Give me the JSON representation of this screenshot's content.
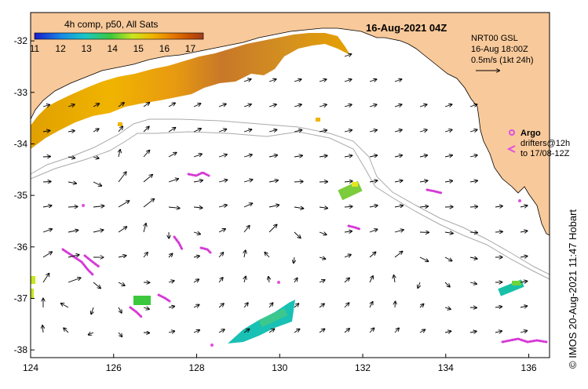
{
  "map": {
    "title": "16-Aug-2021 04Z",
    "credit": "IMOS 20-Aug-2021 11:47 Hobart",
    "credit_symbol": "©",
    "lon_range": [
      124,
      136.5
    ],
    "lat_range": [
      -38.15,
      -31.45
    ],
    "lon_ticks": [
      "124",
      "126",
      "128",
      "130",
      "132",
      "134",
      "136"
    ],
    "lat_ticks": [
      "-32",
      "-33",
      "-34",
      "-35",
      "-36",
      "-37",
      "-38"
    ],
    "colors": {
      "land": "#f8c99a",
      "ocean": "#ffffff",
      "argo": "#e04fe0",
      "drifter": "#d63ad6",
      "contour": "#aaaaaa",
      "arrow": "#000000"
    }
  },
  "colorbar": {
    "title": "4h comp, p50, All Sats",
    "labels": [
      "11",
      "12",
      "13",
      "14",
      "15",
      "16",
      "17"
    ],
    "range": [
      11,
      17.5
    ],
    "gradient": [
      "#1a1acc",
      "#1a8ae6",
      "#19c7c7",
      "#3cc83c",
      "#c8e61e",
      "#f0b400",
      "#e67800",
      "#c85000",
      "#a03c1e"
    ]
  },
  "current_legend": {
    "line1": "NRT00 GSL",
    "line2": "16-Aug 18:00Z",
    "line3": "0.5m/s (1kt 24h)"
  },
  "argo_legend": {
    "title": "Argo",
    "line1": "drifters@12h",
    "line2": "to 17/08-12Z"
  }
}
